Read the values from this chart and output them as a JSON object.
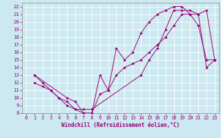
{
  "xlabel": "Windchill (Refroidissement éolien,°C)",
  "bg_color": "#cce8f0",
  "line_color": "#990077",
  "marker_color": "#990077",
  "grid_color": "#ffffff",
  "xlim": [
    -0.5,
    23.5
  ],
  "ylim": [
    8,
    22.5
  ],
  "xticks": [
    0,
    1,
    2,
    3,
    4,
    5,
    6,
    7,
    8,
    9,
    10,
    11,
    12,
    13,
    14,
    15,
    16,
    17,
    18,
    19,
    20,
    21,
    22,
    23
  ],
  "yticks": [
    8,
    9,
    10,
    11,
    12,
    13,
    14,
    15,
    16,
    17,
    18,
    19,
    20,
    21,
    22
  ],
  "curve1_x": [
    1,
    2,
    3,
    4,
    5,
    6,
    7,
    8,
    9,
    10,
    11,
    12,
    13,
    14,
    15,
    16,
    17,
    18,
    19,
    20,
    21,
    22,
    23
  ],
  "curve1_y": [
    13,
    12,
    11,
    10,
    9,
    8.5,
    8,
    8,
    13,
    11,
    16.5,
    15,
    16,
    18.5,
    20,
    21,
    21.5,
    22,
    22,
    21,
    19.5,
    15,
    15
  ],
  "curve2_x": [
    1,
    2,
    3,
    4,
    5,
    6,
    7,
    8,
    14,
    15,
    16,
    17,
    18,
    19,
    20,
    21,
    22,
    23
  ],
  "curve2_y": [
    12,
    11.5,
    11,
    10,
    9.5,
    8.5,
    8.5,
    8.5,
    13,
    15,
    16.5,
    19,
    21.5,
    21.5,
    21.5,
    21,
    14,
    15
  ],
  "curve3_x": [
    1,
    5,
    6,
    7,
    8,
    9,
    10,
    11,
    12,
    13,
    14,
    15,
    16,
    17,
    18,
    19,
    20,
    21,
    22,
    23
  ],
  "curve3_y": [
    13,
    10,
    9.5,
    8,
    8,
    10.5,
    11,
    13,
    14,
    14.5,
    15,
    16,
    17,
    18,
    19.5,
    21,
    21,
    21,
    21.5,
    15
  ],
  "tick_fontsize": 5,
  "xlabel_fontsize": 5.5,
  "lw": 0.7,
  "ms": 1.8
}
